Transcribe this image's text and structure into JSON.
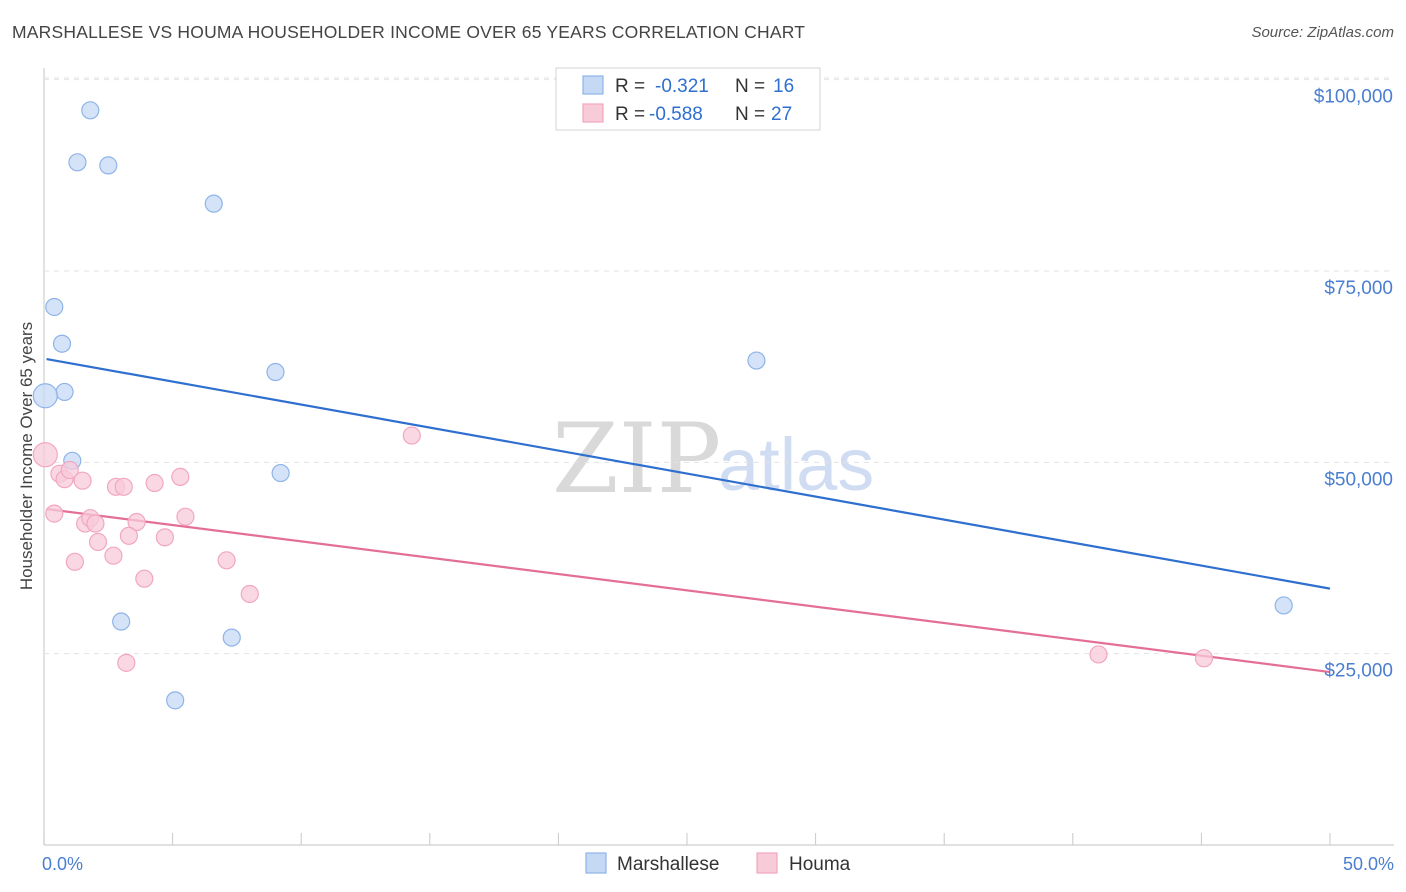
{
  "header": {
    "title": "MARSHALLESE VS HOUMA HOUSEHOLDER INCOME OVER 65 YEARS CORRELATION CHART",
    "source": "Source: ZipAtlas.com"
  },
  "watermark": {
    "zip": "ZIP",
    "atlas": "atlas"
  },
  "legend": {
    "rows": [
      {
        "r_label": "R =",
        "r_value": "-0.321",
        "n_label": "N =",
        "n_value": "16"
      },
      {
        "r_label": "R =",
        "r_value": "-0.588",
        "n_label": "N =",
        "n_value": "27"
      }
    ]
  },
  "chart_data": {
    "type": "scatter",
    "title": "MARSHALLESE VS HOUMA HOUSEHOLDER INCOME OVER 65 YEARS CORRELATION CHART",
    "xlabel": "",
    "ylabel": "Householder Income Over 65 years",
    "xlim": [
      0,
      50
    ],
    "ylim": [
      0,
      105000
    ],
    "x_tick_labels": [
      "0.0%",
      "50.0%"
    ],
    "y_ticks": [
      25000,
      50000,
      75000,
      100000
    ],
    "y_tick_labels": [
      "$25,000",
      "$50,000",
      "$75,000",
      "$100,000"
    ],
    "grid": true,
    "legend_position": "bottom",
    "series": [
      {
        "name": "Marshallese",
        "color": "#8fb4e8",
        "fill": "#c5d9f5",
        "line_color": "#2f6fcf",
        "r": -0.321,
        "n": 16,
        "trend": {
          "x": [
            0.1,
            50.0
          ],
          "y": [
            63500,
            33500
          ]
        },
        "points": [
          {
            "x": 1.8,
            "y": 96000
          },
          {
            "x": 1.3,
            "y": 89200
          },
          {
            "x": 2.5,
            "y": 88800
          },
          {
            "x": 6.6,
            "y": 83800
          },
          {
            "x": 0.4,
            "y": 70300
          },
          {
            "x": 0.7,
            "y": 65500
          },
          {
            "x": 0.8,
            "y": 59200
          },
          {
            "x": 0.05,
            "y": 58700
          },
          {
            "x": 1.1,
            "y": 50200
          },
          {
            "x": 9.0,
            "y": 61800
          },
          {
            "x": 9.2,
            "y": 48600
          },
          {
            "x": 27.7,
            "y": 63300
          },
          {
            "x": 48.2,
            "y": 31300
          },
          {
            "x": 3.0,
            "y": 29200
          },
          {
            "x": 7.3,
            "y": 27100
          },
          {
            "x": 5.1,
            "y": 18900
          }
        ]
      },
      {
        "name": "Houma",
        "color": "#f2a7bf",
        "fill": "#f8cbd9",
        "line_color": "#e46f96",
        "r": -0.588,
        "n": 27,
        "trend": {
          "x": [
            0.1,
            50.0
          ],
          "y": [
            43900,
            22600
          ]
        },
        "points": [
          {
            "x": 0.05,
            "y": 51000
          },
          {
            "x": 0.6,
            "y": 48500
          },
          {
            "x": 0.8,
            "y": 47800
          },
          {
            "x": 1.0,
            "y": 49000
          },
          {
            "x": 1.5,
            "y": 47600
          },
          {
            "x": 2.8,
            "y": 46800
          },
          {
            "x": 3.1,
            "y": 46800
          },
          {
            "x": 4.3,
            "y": 47300
          },
          {
            "x": 5.3,
            "y": 48100
          },
          {
            "x": 0.4,
            "y": 43300
          },
          {
            "x": 1.6,
            "y": 42000
          },
          {
            "x": 1.8,
            "y": 42700
          },
          {
            "x": 2.0,
            "y": 42000
          },
          {
            "x": 3.6,
            "y": 42200
          },
          {
            "x": 5.5,
            "y": 42900
          },
          {
            "x": 2.1,
            "y": 39600
          },
          {
            "x": 3.3,
            "y": 40400
          },
          {
            "x": 4.7,
            "y": 40200
          },
          {
            "x": 1.2,
            "y": 37000
          },
          {
            "x": 2.7,
            "y": 37800
          },
          {
            "x": 7.1,
            "y": 37200
          },
          {
            "x": 3.9,
            "y": 34800
          },
          {
            "x": 8.0,
            "y": 32800
          },
          {
            "x": 3.2,
            "y": 23800
          },
          {
            "x": 14.3,
            "y": 53500
          },
          {
            "x": 41.0,
            "y": 24900
          },
          {
            "x": 45.1,
            "y": 24400
          }
        ]
      }
    ]
  }
}
